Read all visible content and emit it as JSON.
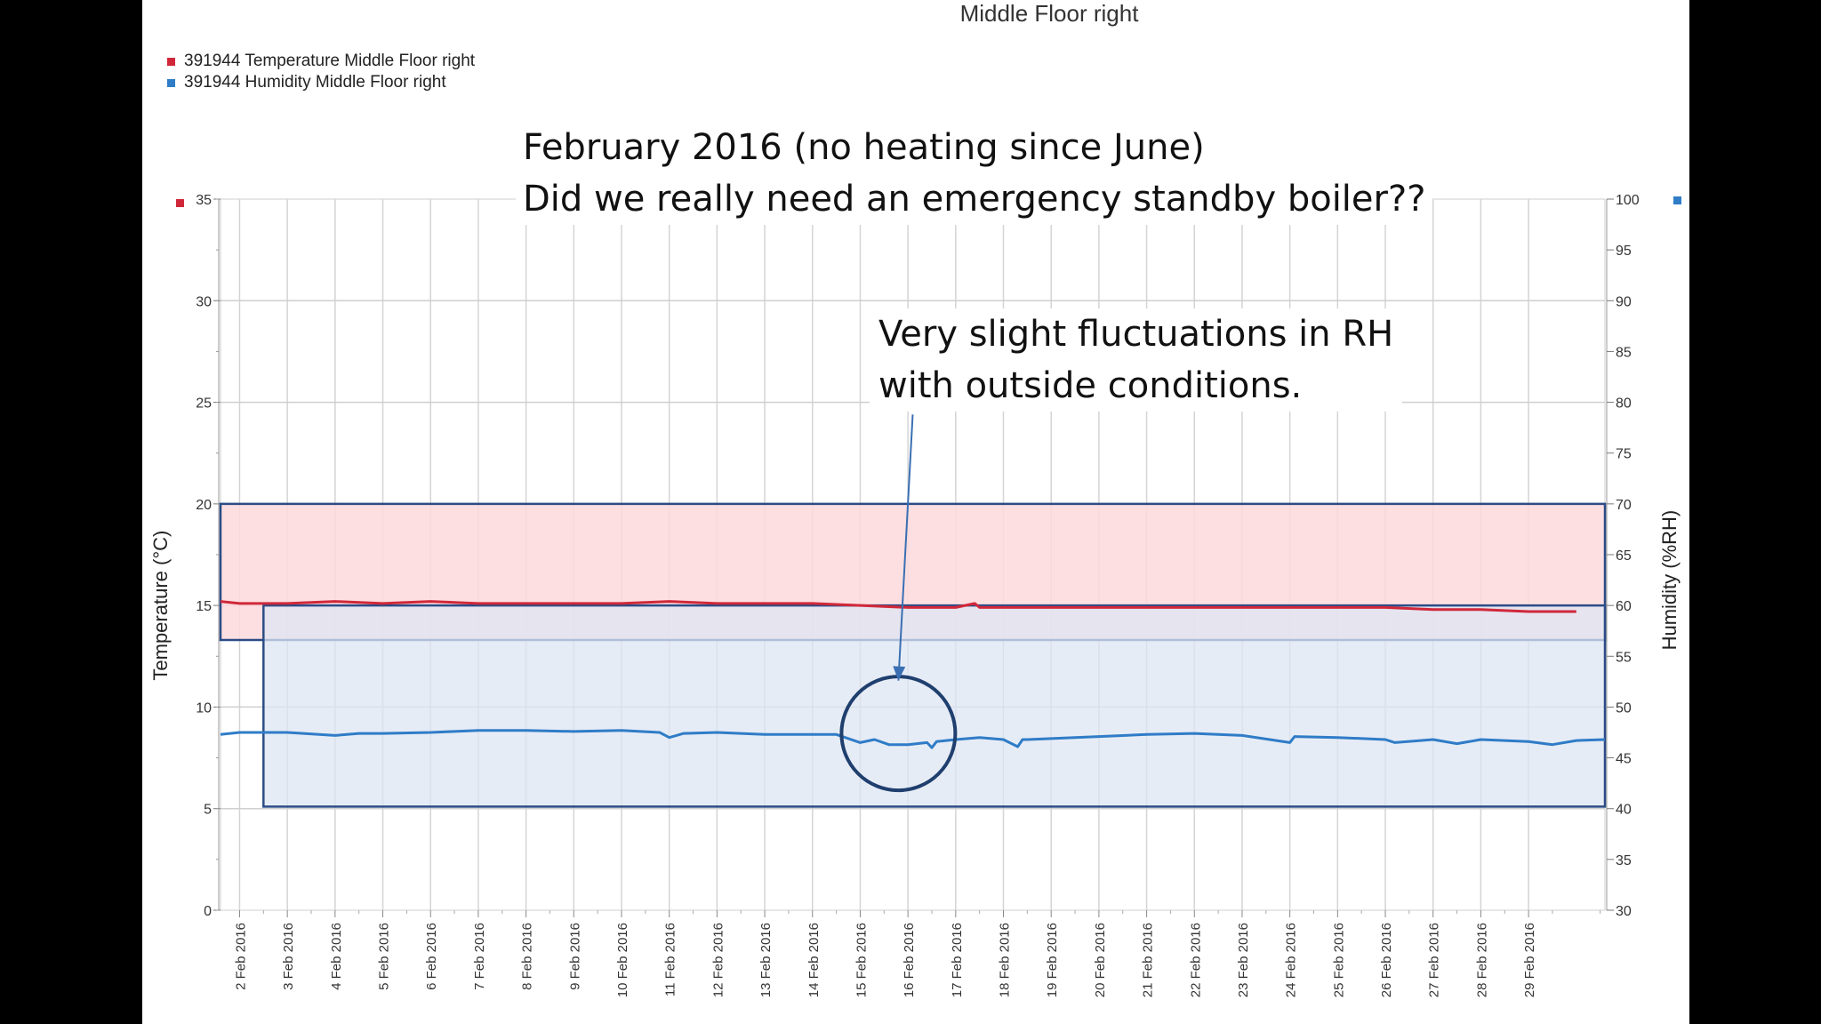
{
  "slide": {
    "callout_top_line1": "February 2016 (no heating since June)",
    "callout_top_line2": "Did we really need an emergency standby boiler??",
    "callout_mid_line1": "Very slight fluctuations in RH",
    "callout_mid_line2": "with outside conditions.",
    "colors": {
      "temperature": "#d0283a",
      "humidity": "#2f7cc7",
      "temp_box_fill": "#fdd9dc",
      "hum_box_fill": "#dde6f3",
      "box_stroke": "#2b4c86"
    }
  },
  "chart_data": {
    "type": "line",
    "title": "Middle Floor right",
    "legend": [
      "391944 Temperature Middle Floor right",
      "391944 Humidity Middle Floor right"
    ],
    "legend_placement": "top-left",
    "ylabel_left": "Temperature (°C)",
    "ylabel_right": "Humidity (%RH)",
    "ylim_left": [
      0,
      35
    ],
    "ylim_right": [
      30,
      100
    ],
    "yticks_left": [
      0,
      5,
      10,
      15,
      20,
      25,
      30,
      35
    ],
    "yticks_right": [
      30,
      35,
      40,
      45,
      50,
      55,
      60,
      65,
      70,
      75,
      80,
      85,
      90,
      95,
      100
    ],
    "x_start": "1.6 Feb 2016",
    "x_end": "30.6 Feb 2016",
    "categories": [
      "2 Feb 2016",
      "3 Feb 2016",
      "4 Feb 2016",
      "5 Feb 2016",
      "6 Feb 2016",
      "7 Feb 2016",
      "8 Feb 2016",
      "9 Feb 2016",
      "10 Feb 2016",
      "11 Feb 2016",
      "12 Feb 2016",
      "13 Feb 2016",
      "14 Feb 2016",
      "15 Feb 2016",
      "16 Feb 2016",
      "17 Feb 2016",
      "18 Feb 2016",
      "19 Feb 2016",
      "20 Feb 2016",
      "21 Feb 2016",
      "22 Feb 2016",
      "23 Feb 2016",
      "24 Feb 2016",
      "25 Feb 2016",
      "26 Feb 2016",
      "27 Feb 2016",
      "28 Feb 2016",
      "29 Feb 2016"
    ],
    "grid": true,
    "series": [
      {
        "name": "391944 Temperature Middle Floor right",
        "axis": "left",
        "x": [
          1.6,
          2.0,
          3.0,
          4.0,
          5.0,
          6.0,
          7.0,
          8.0,
          9.0,
          10.0,
          11.0,
          12.0,
          13.0,
          14.0,
          15.0,
          16.0,
          17.0,
          17.4,
          17.5,
          18.0,
          19.0,
          20.0,
          21.0,
          22.0,
          23.0,
          24.0,
          25.0,
          26.0,
          27.0,
          28.0,
          29.0,
          30.0
        ],
        "values": [
          15.2,
          15.1,
          15.1,
          15.2,
          15.1,
          15.2,
          15.1,
          15.1,
          15.1,
          15.1,
          15.2,
          15.1,
          15.1,
          15.1,
          15.0,
          14.9,
          14.9,
          15.1,
          14.9,
          14.9,
          14.9,
          14.9,
          14.9,
          14.9,
          14.9,
          14.9,
          14.9,
          14.9,
          14.8,
          14.8,
          14.7,
          14.7
        ]
      },
      {
        "name": "391944 Humidity Middle Floor right",
        "axis": "right",
        "x": [
          1.6,
          2.0,
          3.0,
          4.0,
          4.5,
          5.0,
          6.0,
          7.0,
          8.0,
          9.0,
          10.0,
          10.8,
          11.0,
          11.3,
          12.0,
          13.0,
          14.0,
          14.5,
          15.0,
          15.3,
          15.6,
          16.0,
          16.4,
          16.5,
          16.6,
          17.0,
          17.5,
          18.0,
          18.3,
          18.4,
          18.5,
          19.0,
          20.0,
          21.0,
          22.0,
          23.0,
          24.0,
          24.1,
          25.0,
          26.0,
          26.2,
          27.0,
          27.5,
          28.0,
          29.0,
          29.5,
          30.0,
          30.6
        ],
        "values": [
          47.3,
          47.5,
          47.5,
          47.2,
          47.4,
          47.4,
          47.5,
          47.7,
          47.7,
          47.6,
          47.7,
          47.5,
          47.0,
          47.4,
          47.5,
          47.3,
          47.3,
          47.3,
          46.5,
          46.8,
          46.3,
          46.3,
          46.5,
          46.0,
          46.6,
          46.8,
          47.0,
          46.8,
          46.1,
          46.8,
          46.8,
          46.9,
          47.1,
          47.3,
          47.4,
          47.2,
          46.5,
          47.1,
          47.0,
          46.8,
          46.5,
          46.8,
          46.4,
          46.8,
          46.6,
          46.3,
          46.7,
          46.8
        ]
      }
    ],
    "annotation_boxes": [
      {
        "axis": "left",
        "x0": 1.6,
        "x1": 30.6,
        "y0": 13.3,
        "y1": 20.0
      },
      {
        "axis": "left",
        "x0": 2.5,
        "x1": 30.6,
        "y0": 5.1,
        "y1": 15.0
      }
    ],
    "annotation_circle": {
      "x": 15.8,
      "y_left": 8.7
    },
    "annotation_arrow": {
      "from_x": 16.1,
      "from_y": 24.4,
      "to_x": 15.8,
      "to_y": 11.3
    }
  }
}
